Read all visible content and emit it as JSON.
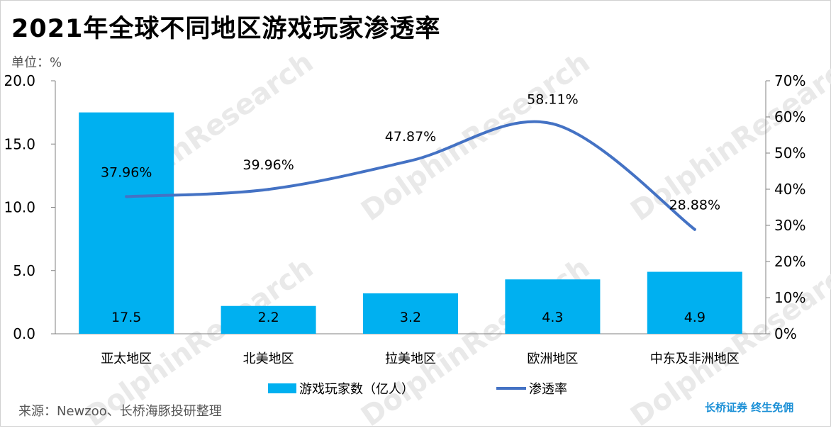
{
  "header": {
    "title": "2021年全球不同地区游戏玩家渗透率",
    "unit": "单位：%"
  },
  "footer": {
    "source": "来源：Newzoo、长桥海豚投研整理",
    "brand": "长桥证券 终生免佣"
  },
  "watermark": {
    "text": "DolphinResearch"
  },
  "chart_data": {
    "type": "bar",
    "categories": [
      "亚太地区",
      "北美地区",
      "拉美地区",
      "欧洲地区",
      "中东及非洲地区"
    ],
    "series": [
      {
        "name": "游戏玩家数（亿人）",
        "type": "bar",
        "axis": "left",
        "values": [
          17.5,
          2.2,
          3.2,
          4.3,
          4.9
        ],
        "labels": [
          "17.5",
          "2.2",
          "3.2",
          "4.3",
          "4.9"
        ],
        "color": "#00b0f0"
      },
      {
        "name": "渗透率",
        "type": "line",
        "axis": "right",
        "values": [
          37.96,
          39.96,
          47.87,
          58.11,
          28.88
        ],
        "labels": [
          "37.96%",
          "39.96%",
          "47.87%",
          "58.11%",
          "28.88%"
        ],
        "color": "#4472c4"
      }
    ],
    "y_left": {
      "ylim": [
        0,
        20
      ],
      "ticks": [
        "0.0",
        "5.0",
        "10.0",
        "15.0",
        "20.0"
      ]
    },
    "y_right": {
      "ylim": [
        0,
        70
      ],
      "ticks": [
        "0%",
        "10%",
        "20%",
        "30%",
        "40%",
        "50%",
        "60%",
        "70%"
      ]
    },
    "legend_position": "bottom",
    "grid": false
  }
}
